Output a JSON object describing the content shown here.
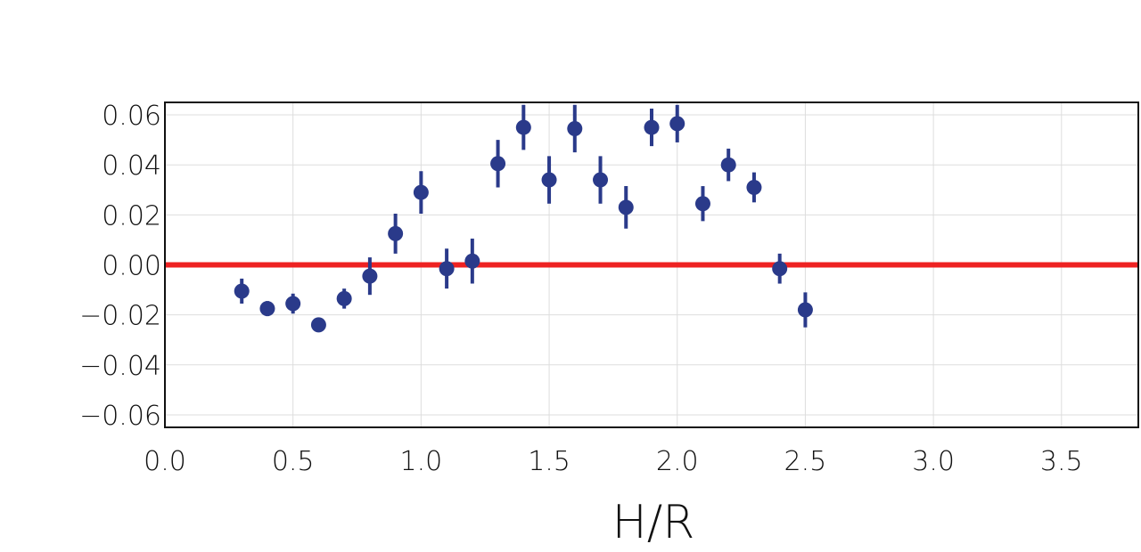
{
  "chart_data": {
    "type": "scatter",
    "title": "",
    "xlabel": "H/R",
    "ylabel": "",
    "xlim": [
      0.0,
      3.8
    ],
    "ylim": [
      -0.065,
      0.065
    ],
    "x_ticks": [
      0.0,
      0.5,
      1.0,
      1.5,
      2.0,
      2.5,
      3.0,
      3.5
    ],
    "x_tick_labels": [
      "0.0",
      "0.5",
      "1.0",
      "1.5",
      "2.0",
      "2.5",
      "3.0",
      "3.5"
    ],
    "y_ticks": [
      0.06,
      0.04,
      0.02,
      0.0,
      -0.02,
      -0.04,
      -0.06
    ],
    "y_tick_labels": [
      "0.06",
      "0.04",
      "0.02",
      "0.00",
      "−0.02",
      "−0.04",
      "−0.06"
    ],
    "grid": true,
    "reference_line": {
      "y": 0.0,
      "color": "#ee2222"
    },
    "series": [
      {
        "color": "#2a3a8a",
        "points": [
          {
            "x": 0.3,
            "y": -0.0105,
            "err": 0.005
          },
          {
            "x": 0.4,
            "y": -0.0175,
            "err": 0.003
          },
          {
            "x": 0.5,
            "y": -0.0155,
            "err": 0.004
          },
          {
            "x": 0.6,
            "y": -0.024,
            "err": 0.002
          },
          {
            "x": 0.7,
            "y": -0.0135,
            "err": 0.004
          },
          {
            "x": 0.8,
            "y": -0.0045,
            "err": 0.0075
          },
          {
            "x": 0.9,
            "y": 0.0125,
            "err": 0.008
          },
          {
            "x": 1.0,
            "y": 0.029,
            "err": 0.0085
          },
          {
            "x": 1.1,
            "y": -0.0015,
            "err": 0.008
          },
          {
            "x": 1.2,
            "y": 0.0015,
            "err": 0.009
          },
          {
            "x": 1.3,
            "y": 0.0405,
            "err": 0.0095
          },
          {
            "x": 1.4,
            "y": 0.055,
            "err": 0.009
          },
          {
            "x": 1.5,
            "y": 0.034,
            "err": 0.0095
          },
          {
            "x": 1.6,
            "y": 0.0545,
            "err": 0.0095
          },
          {
            "x": 1.7,
            "y": 0.034,
            "err": 0.0095
          },
          {
            "x": 1.8,
            "y": 0.023,
            "err": 0.0085
          },
          {
            "x": 1.9,
            "y": 0.055,
            "err": 0.0075
          },
          {
            "x": 2.0,
            "y": 0.0565,
            "err": 0.0075
          },
          {
            "x": 2.1,
            "y": 0.0245,
            "err": 0.007
          },
          {
            "x": 2.2,
            "y": 0.04,
            "err": 0.0065
          },
          {
            "x": 2.3,
            "y": 0.031,
            "err": 0.006
          },
          {
            "x": 2.4,
            "y": -0.0015,
            "err": 0.006
          },
          {
            "x": 2.5,
            "y": -0.018,
            "err": 0.007
          }
        ]
      }
    ]
  }
}
